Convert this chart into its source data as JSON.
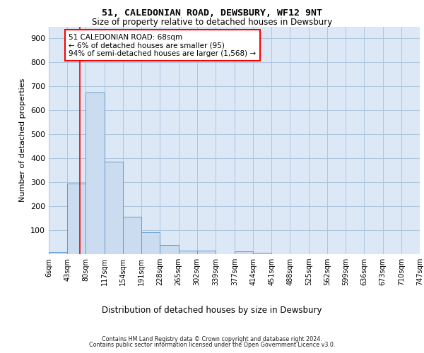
{
  "title": "51, CALEDONIAN ROAD, DEWSBURY, WF12 9NT",
  "subtitle": "Size of property relative to detached houses in Dewsbury",
  "xlabel": "Distribution of detached houses by size in Dewsbury",
  "ylabel": "Number of detached properties",
  "bar_edges": [
    6,
    43,
    80,
    117,
    154,
    191,
    228,
    265,
    302,
    339,
    377,
    414,
    451,
    488,
    525,
    562,
    599,
    636,
    673,
    710,
    747
  ],
  "bar_heights": [
    10,
    295,
    675,
    385,
    155,
    90,
    38,
    15,
    15,
    0,
    13,
    5,
    0,
    0,
    0,
    0,
    0,
    0,
    0,
    0
  ],
  "bar_color": "#ccdcf0",
  "bar_edge_color": "#6699cc",
  "property_line_x": 68,
  "annotation_text": "51 CALEDONIAN ROAD: 68sqm\n← 6% of detached houses are smaller (95)\n94% of semi-detached houses are larger (1,568) →",
  "annotation_box_color": "white",
  "annotation_box_edge_color": "red",
  "ylim": [
    0,
    950
  ],
  "yticks": [
    0,
    100,
    200,
    300,
    400,
    500,
    600,
    700,
    800,
    900
  ],
  "tick_labels": [
    "6sqm",
    "43sqm",
    "80sqm",
    "117sqm",
    "154sqm",
    "191sqm",
    "228sqm",
    "265sqm",
    "302sqm",
    "339sqm",
    "377sqm",
    "414sqm",
    "451sqm",
    "488sqm",
    "525sqm",
    "562sqm",
    "599sqm",
    "636sqm",
    "673sqm",
    "710sqm",
    "747sqm"
  ],
  "grid_color": "#adc5e0",
  "bg_color": "#dce8f5",
  "footer_line1": "Contains HM Land Registry data © Crown copyright and database right 2024.",
  "footer_line2": "Contains public sector information licensed under the Open Government Licence v3.0."
}
